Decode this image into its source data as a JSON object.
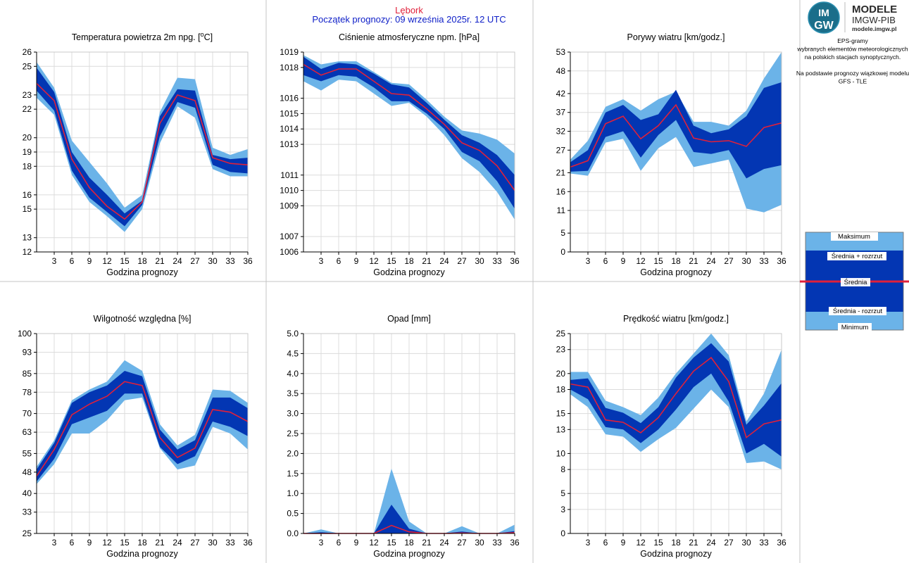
{
  "header": {
    "station": "Lębork",
    "start": "Początek prognozy: 09 września 2025r. 12 UTC"
  },
  "logo": {
    "mark_top": "IM",
    "mark_bottom": "GW",
    "title": "MODELE",
    "subtitle": "IMGW-PIB",
    "site": "modele.imgw.pl"
  },
  "info": {
    "lines": [
      "EPS-gramy",
      "wybranych elementów meteorologicznych",
      "na polskich stacjach  synoptycznych.",
      "",
      "Na podstawie prognozy wiązkowej modelu",
      "GFS - TLE"
    ]
  },
  "legend": {
    "max": "Maksimum",
    "plus": "Średnia + rozrzut",
    "mean": "Średnia",
    "minus": "Średnia - rozrzut",
    "min": "Minimum"
  },
  "colors": {
    "outer": "#6bb3e8",
    "inner": "#0336b3",
    "mean": "#e0203a",
    "station": "#e0203a",
    "start": "#1020c8"
  },
  "chart_data": [
    {
      "id": "temp",
      "type": "area",
      "title": "Temperatura powietrza 2m npg. [°C]",
      "xlabel": "Godzina prognozy",
      "x": [
        0,
        3,
        6,
        9,
        12,
        15,
        18,
        21,
        24,
        27,
        30,
        33,
        36
      ],
      "xticks": [
        3,
        6,
        9,
        12,
        15,
        18,
        21,
        24,
        27,
        30,
        33,
        36
      ],
      "ylim": [
        12,
        26
      ],
      "yticks": [
        12,
        13,
        15,
        16,
        18,
        19,
        20,
        22,
        23,
        25,
        26
      ],
      "series": [
        {
          "name": "Maksimum",
          "values": [
            25.3,
            23.5,
            19.8,
            18.3,
            16.8,
            15.1,
            16.0,
            21.8,
            24.2,
            24.1,
            19.3,
            18.8,
            19.2
          ]
        },
        {
          "name": "Średnia + rozrzut",
          "values": [
            24.9,
            23.2,
            19.0,
            17.2,
            16.0,
            14.7,
            15.6,
            21.5,
            23.4,
            23.3,
            18.8,
            18.5,
            18.6
          ]
        },
        {
          "name": "Średnia",
          "values": [
            23.8,
            22.6,
            18.5,
            16.5,
            15.2,
            14.3,
            15.5,
            21.0,
            23.0,
            22.6,
            18.6,
            18.2,
            18.1
          ]
        },
        {
          "name": "Średnia - rozrzut",
          "values": [
            23.3,
            21.9,
            17.7,
            15.8,
            14.8,
            13.8,
            15.3,
            20.1,
            22.5,
            22.1,
            18.1,
            17.6,
            17.5
          ]
        },
        {
          "name": "Minimum",
          "values": [
            22.8,
            21.6,
            17.4,
            15.5,
            14.5,
            13.4,
            15.0,
            19.6,
            22.2,
            21.4,
            17.8,
            17.3,
            17.3
          ]
        }
      ]
    },
    {
      "id": "pres",
      "type": "area",
      "title": "Ciśnienie atmosferyczne npm. [hPa]",
      "xlabel": "Godzina prognozy",
      "x": [
        0,
        3,
        6,
        9,
        12,
        15,
        18,
        21,
        24,
        27,
        30,
        33,
        36
      ],
      "xticks": [
        3,
        6,
        9,
        12,
        15,
        18,
        21,
        24,
        27,
        30,
        33,
        36
      ],
      "ylim": [
        1006,
        1019
      ],
      "yticks": [
        1006,
        1007,
        1009,
        1010,
        1011,
        1013,
        1014,
        1015,
        1016,
        1018,
        1019
      ],
      "series": [
        {
          "name": "Maksimum",
          "values": [
            1018.8,
            1018.2,
            1018.4,
            1018.4,
            1017.7,
            1017.0,
            1016.9,
            1015.9,
            1014.8,
            1013.9,
            1013.7,
            1013.3,
            1012.4
          ]
        },
        {
          "name": "Średnia + rozrzut",
          "values": [
            1018.7,
            1017.9,
            1018.3,
            1018.2,
            1017.6,
            1016.9,
            1016.7,
            1015.7,
            1014.6,
            1013.6,
            1013.1,
            1012.3,
            1011.0
          ]
        },
        {
          "name": "Średnia",
          "values": [
            1018.2,
            1017.5,
            1017.9,
            1017.9,
            1017.1,
            1016.3,
            1016.2,
            1015.3,
            1014.3,
            1013.1,
            1012.6,
            1011.6,
            1010.0
          ]
        },
        {
          "name": "Średnia - rozrzut",
          "values": [
            1017.5,
            1017.1,
            1017.5,
            1017.4,
            1016.7,
            1015.8,
            1015.8,
            1015.0,
            1014.0,
            1012.5,
            1011.9,
            1010.6,
            1008.8
          ]
        },
        {
          "name": "Minimum",
          "values": [
            1017.1,
            1016.5,
            1017.2,
            1017.1,
            1016.3,
            1015.5,
            1015.7,
            1014.8,
            1013.6,
            1012.1,
            1011.2,
            1009.9,
            1008.1
          ]
        }
      ]
    },
    {
      "id": "gust",
      "type": "area",
      "title": "Porywy wiatru [km/godz.]",
      "xlabel": "Godzina prognozy",
      "x": [
        0,
        3,
        6,
        9,
        12,
        15,
        18,
        21,
        24,
        27,
        30,
        33,
        36
      ],
      "xticks": [
        3,
        6,
        9,
        12,
        15,
        18,
        21,
        24,
        27,
        30,
        33,
        36
      ],
      "ylim": [
        0,
        53
      ],
      "yticks": [
        0,
        5,
        11,
        16,
        21,
        27,
        32,
        37,
        42,
        48,
        53
      ],
      "series": [
        {
          "name": "Maksimum",
          "values": [
            24.5,
            29.5,
            38.5,
            40.5,
            37.5,
            40.5,
            42.5,
            34.5,
            34.5,
            33.5,
            37.5,
            46.0,
            53.0
          ]
        },
        {
          "name": "Średnia + rozrzut",
          "values": [
            23.8,
            27.0,
            37.0,
            39.0,
            35.0,
            36.5,
            43.0,
            33.5,
            31.5,
            32.5,
            36.0,
            43.5,
            45.0
          ]
        },
        {
          "name": "Średnia",
          "values": [
            22.5,
            24.2,
            34.0,
            36.0,
            30.0,
            33.5,
            39.0,
            30.2,
            29.2,
            29.5,
            28.0,
            33.0,
            34.2
          ]
        },
        {
          "name": "Średnia - rozrzut",
          "values": [
            21.3,
            21.5,
            30.5,
            32.0,
            25.0,
            31.0,
            35.0,
            26.5,
            26.0,
            27.0,
            19.5,
            22.0,
            23.0
          ]
        },
        {
          "name": "Minimum",
          "values": [
            20.8,
            20.2,
            29.0,
            30.0,
            21.5,
            27.5,
            30.5,
            22.5,
            23.5,
            24.5,
            11.5,
            10.5,
            12.5
          ]
        }
      ]
    },
    {
      "id": "hum",
      "type": "area",
      "title": "Wilgotność względna [%]",
      "xlabel": "Godzina prognozy",
      "x": [
        0,
        3,
        6,
        9,
        12,
        15,
        18,
        21,
        24,
        27,
        30,
        33,
        36
      ],
      "xticks": [
        3,
        6,
        9,
        12,
        15,
        18,
        21,
        24,
        27,
        30,
        33,
        36
      ],
      "ylim": [
        25,
        100
      ],
      "yticks": [
        25,
        33,
        40,
        48,
        55,
        63,
        70,
        78,
        85,
        93,
        100
      ],
      "series": [
        {
          "name": "Maksimum",
          "values": [
            50.0,
            60.0,
            75.0,
            79.0,
            82.0,
            90.0,
            86.0,
            66.0,
            58.0,
            62.0,
            79.0,
            78.5,
            74.0
          ]
        },
        {
          "name": "Średnia + rozrzut",
          "values": [
            49.0,
            59.0,
            74.0,
            78.0,
            80.5,
            86.0,
            84.0,
            64.0,
            56.5,
            60.0,
            76.0,
            76.0,
            72.0
          ]
        },
        {
          "name": "Średnia",
          "values": [
            46.5,
            56.5,
            69.5,
            73.5,
            76.5,
            82.0,
            80.5,
            61.0,
            53.5,
            57.0,
            71.5,
            70.5,
            67.0
          ]
        },
        {
          "name": "Średnia - rozrzut",
          "values": [
            44.5,
            53.0,
            66.0,
            68.5,
            71.0,
            77.5,
            77.5,
            57.5,
            51.0,
            54.0,
            67.0,
            65.0,
            61.5
          ]
        },
        {
          "name": "Minimum",
          "values": [
            43.5,
            51.0,
            62.5,
            62.5,
            67.5,
            75.0,
            76.0,
            57.0,
            49.0,
            50.5,
            65.0,
            62.5,
            56.5
          ]
        }
      ]
    },
    {
      "id": "prec",
      "type": "area",
      "title": "Opad [mm]",
      "xlabel": "Godzina prognozy",
      "x": [
        0,
        3,
        6,
        9,
        12,
        15,
        18,
        21,
        24,
        27,
        30,
        33,
        36
      ],
      "xticks": [
        3,
        6,
        9,
        12,
        15,
        18,
        21,
        24,
        27,
        30,
        33,
        36
      ],
      "ylim": [
        0,
        5
      ],
      "yticks": [
        0.0,
        0.5,
        1.0,
        1.5,
        2.0,
        2.5,
        3.0,
        3.5,
        4.0,
        4.5,
        5.0
      ],
      "series": [
        {
          "name": "Maksimum",
          "values": [
            0.0,
            0.1,
            0.0,
            0.0,
            0.0,
            1.62,
            0.3,
            0.0,
            0.0,
            0.18,
            0.0,
            0.0,
            0.22
          ]
        },
        {
          "name": "Średnia + rozrzut",
          "values": [
            0.0,
            0.03,
            0.0,
            0.0,
            0.0,
            0.72,
            0.12,
            0.0,
            0.0,
            0.05,
            0.0,
            0.0,
            0.06
          ]
        },
        {
          "name": "Średnia",
          "values": [
            0.0,
            0.0,
            0.0,
            0.0,
            0.0,
            0.2,
            0.04,
            0.0,
            0.0,
            0.01,
            0.0,
            0.0,
            0.02
          ]
        },
        {
          "name": "Średnia - rozrzut",
          "values": [
            0.0,
            0.0,
            0.0,
            0.0,
            0.0,
            0.0,
            0.0,
            0.0,
            0.0,
            0.0,
            0.0,
            0.0,
            0.0
          ]
        },
        {
          "name": "Minimum",
          "values": [
            0.0,
            0.0,
            0.0,
            0.0,
            0.0,
            0.0,
            0.0,
            0.0,
            0.0,
            0.0,
            0.0,
            0.0,
            0.0
          ]
        }
      ]
    },
    {
      "id": "wind",
      "type": "area",
      "title": "Prędkość wiatru [km/godz.]",
      "xlabel": "Godzina prognozy",
      "x": [
        0,
        3,
        6,
        9,
        12,
        15,
        18,
        21,
        24,
        27,
        30,
        33,
        36
      ],
      "xticks": [
        3,
        6,
        9,
        12,
        15,
        18,
        21,
        24,
        27,
        30,
        33,
        36
      ],
      "ylim": [
        0,
        25
      ],
      "yticks": [
        0,
        3,
        5,
        8,
        10,
        13,
        15,
        18,
        20,
        23,
        25
      ],
      "series": [
        {
          "name": "Maksimum",
          "values": [
            20.2,
            20.2,
            16.6,
            15.8,
            14.8,
            17.0,
            20.0,
            22.5,
            25.0,
            22.3,
            14.0,
            17.5,
            23.0
          ]
        },
        {
          "name": "Średnia + rozrzut",
          "values": [
            19.2,
            19.4,
            15.7,
            15.1,
            13.8,
            15.8,
            19.5,
            22.0,
            23.8,
            21.5,
            13.6,
            16.0,
            18.8
          ]
        },
        {
          "name": "Średnia",
          "values": [
            18.7,
            18.3,
            14.2,
            13.9,
            12.6,
            14.5,
            17.5,
            20.3,
            22.0,
            19.0,
            12.0,
            13.7,
            14.2
          ]
        },
        {
          "name": "Średnia - rozrzut",
          "values": [
            18.0,
            16.8,
            13.3,
            13.0,
            11.3,
            13.0,
            15.5,
            18.3,
            20.0,
            16.5,
            10.0,
            11.2,
            9.6
          ]
        },
        {
          "name": "Minimum",
          "values": [
            17.4,
            15.8,
            12.4,
            12.1,
            10.2,
            11.8,
            13.2,
            15.6,
            18.0,
            15.8,
            8.8,
            9.0,
            8.0
          ]
        }
      ]
    }
  ]
}
